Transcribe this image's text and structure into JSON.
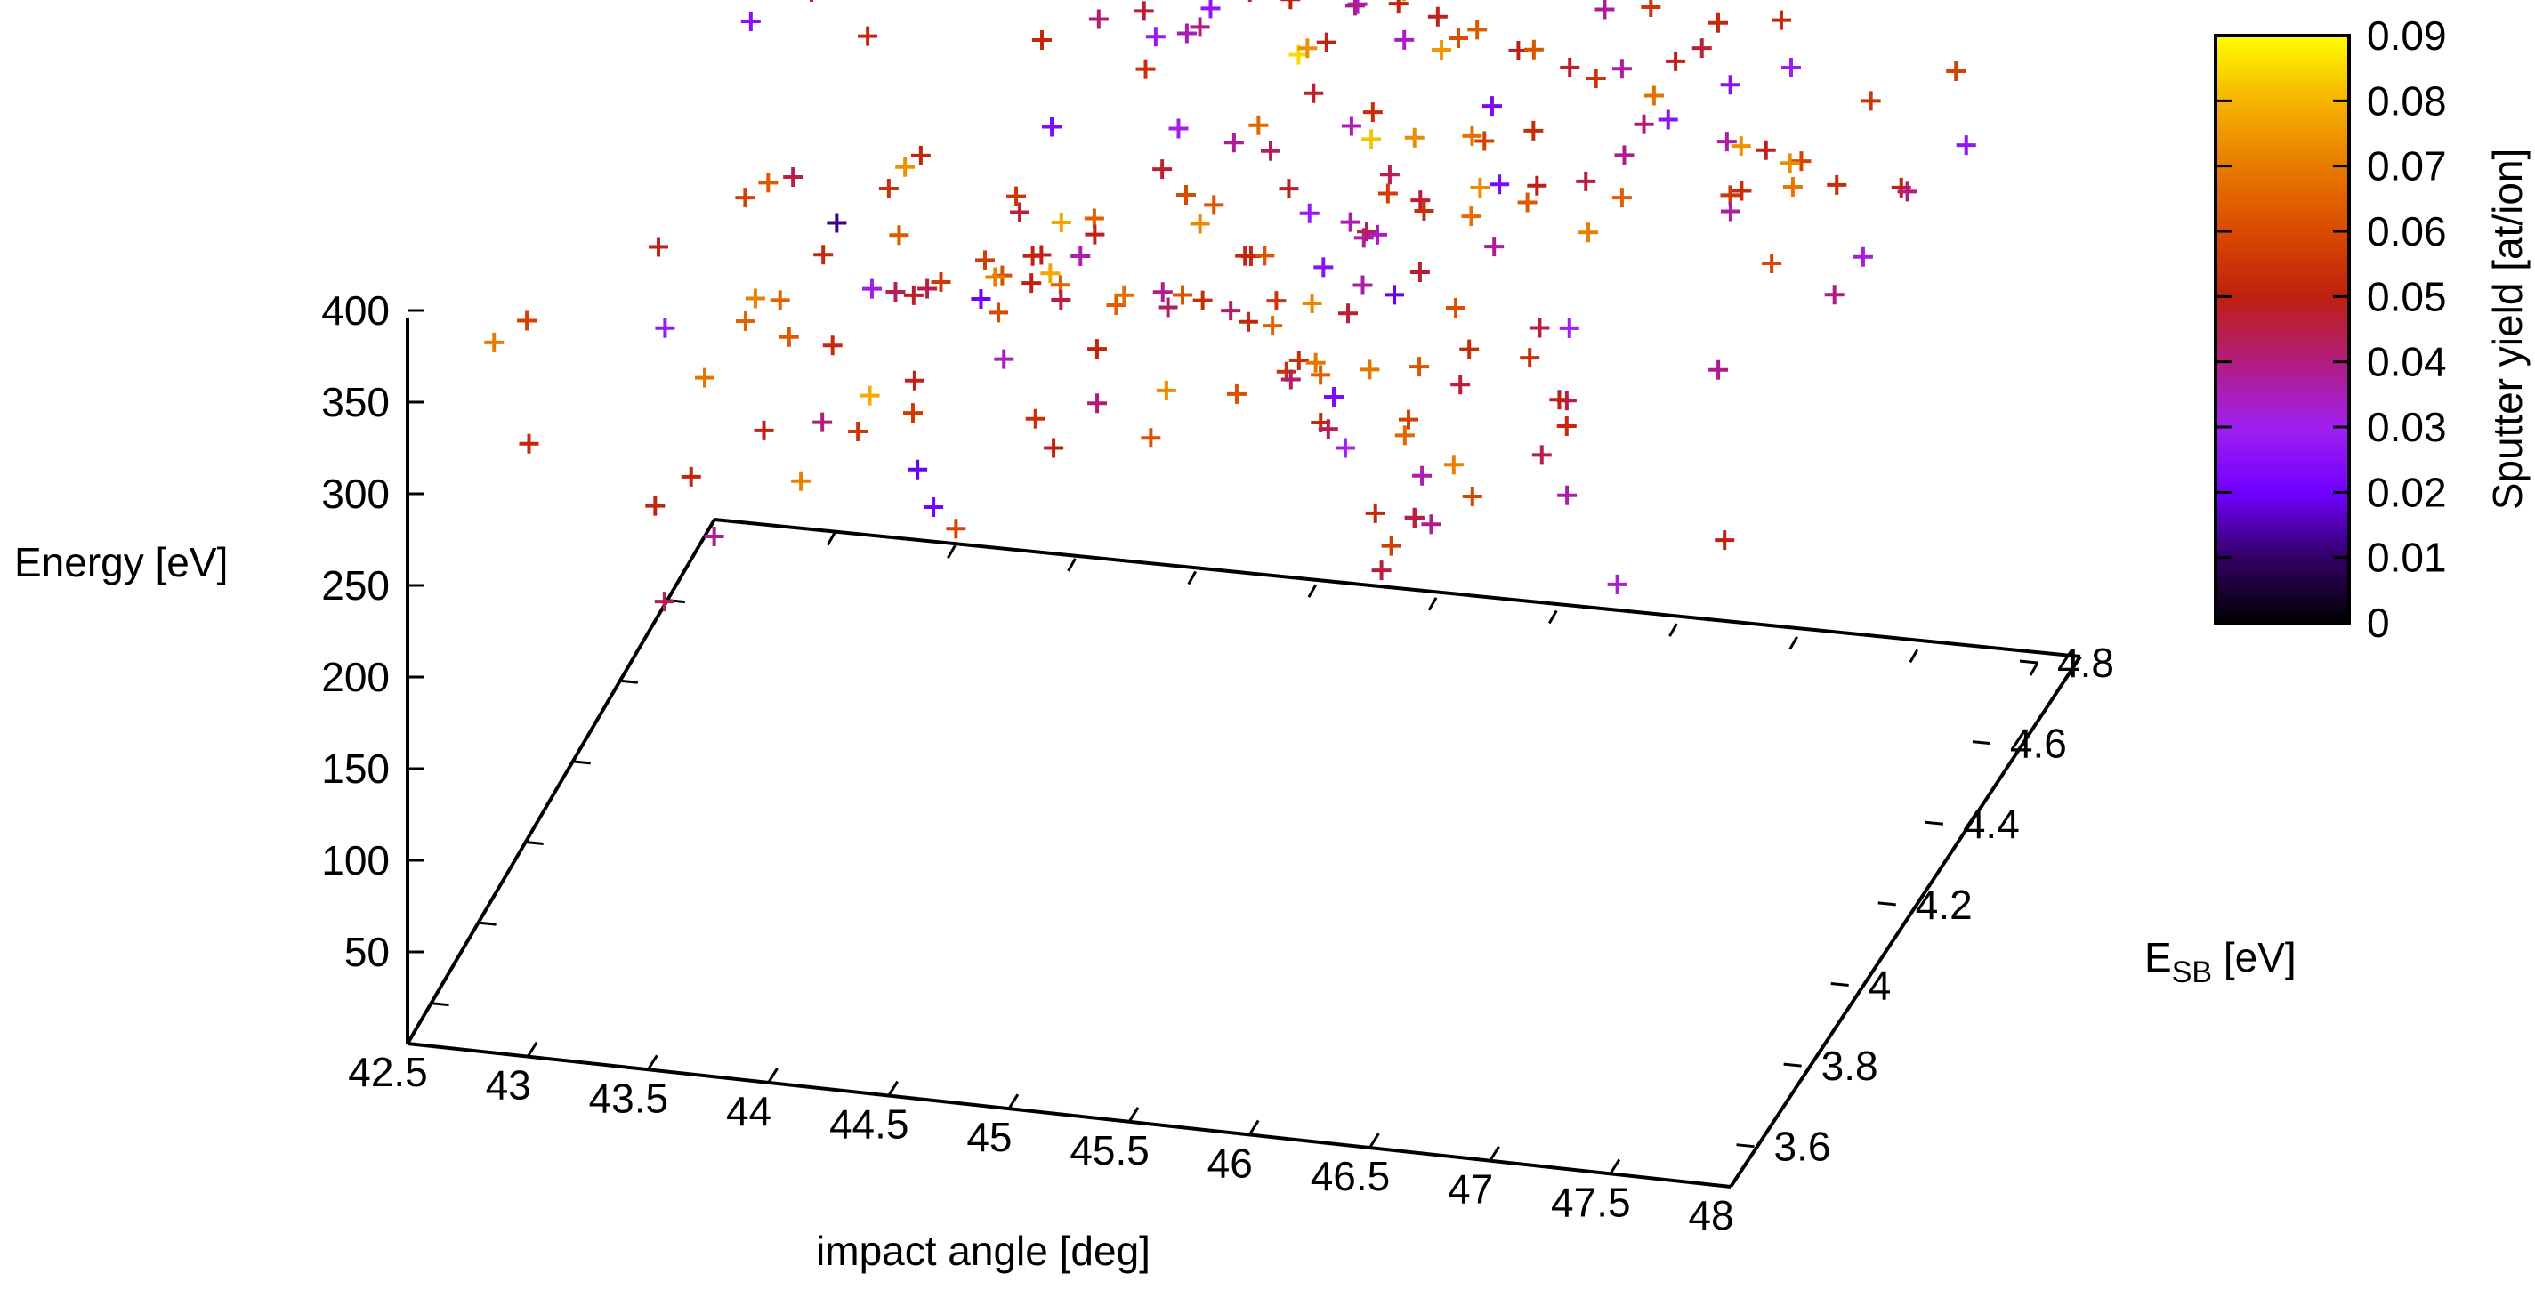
{
  "chart_data": {
    "type": "scatter",
    "title": "",
    "x_axis": {
      "label": "impact angle [deg]",
      "range": [
        42.5,
        48
      ],
      "ticks": [
        "42.5",
        "43",
        "43.5",
        "44",
        "44.5",
        "45",
        "45.5",
        "46",
        "46.5",
        "47",
        "47.5",
        "48"
      ]
    },
    "y_axis": {
      "label_main": "E",
      "label_sub": "SB",
      "label_rest": " [eV]",
      "range": [
        3.5,
        4.8
      ],
      "ticks": [
        "3.6",
        "3.8",
        "4",
        "4.2",
        "4.4",
        "4.6",
        "4.8"
      ]
    },
    "z_axis": {
      "label": "Energy [eV]",
      "range": [
        0,
        400
      ],
      "ticks": [
        "50",
        "100",
        "150",
        "200",
        "250",
        "300",
        "350",
        "400"
      ]
    },
    "colorbar": {
      "label": "Sputter yield [at/ion]",
      "range": [
        0,
        0.09
      ],
      "ticks": [
        "0",
        "0.01",
        "0.02",
        "0.03",
        "0.04",
        "0.05",
        "0.06",
        "0.07",
        "0.08",
        "0.09"
      ],
      "palette": [
        "#000000",
        "#330066",
        "#7000ff",
        "#a020f0",
        "#b21c80",
        "#c0200f",
        "#d94a00",
        "#e87b00",
        "#f5b300",
        "#ffff00"
      ]
    },
    "grid": false,
    "point_marker": "plus",
    "points": [
      [
        47.46,
        4.2,
        404,
        0.049
      ],
      [
        47.25,
        3.57,
        389,
        0.052
      ],
      [
        46.85,
        4.55,
        374,
        0.047
      ],
      [
        47.29,
        4.27,
        364,
        0.053
      ],
      [
        45.22,
        3.73,
        391,
        0.064
      ],
      [
        43.88,
        3.71,
        359,
        0.063
      ],
      [
        46.16,
        3.87,
        260,
        0.052
      ],
      [
        46.26,
        4.7,
        396,
        0.038
      ],
      [
        43.06,
        4.02,
        284,
        0.028
      ],
      [
        46.78,
        4.06,
        328,
        0.03
      ],
      [
        46.19,
        4.03,
        396,
        0.047
      ],
      [
        45.18,
        3.99,
        332,
        0.043
      ],
      [
        46.38,
        4.7,
        276,
        0.039
      ],
      [
        46.11,
        4.11,
        338,
        0.047
      ],
      [
        44.89,
        4.48,
        276,
        0.062
      ],
      [
        46.55,
        3.67,
        330,
        0.036
      ],
      [
        46.18,
        4.19,
        302,
        0.061
      ],
      [
        44.8,
        4.67,
        384,
        0.049
      ],
      [
        45.17,
        3.7,
        373,
        0.051
      ],
      [
        45.36,
        4.19,
        390,
        0.066
      ],
      [
        44.5,
        4.11,
        324,
        0.051
      ],
      [
        42.71,
        4.74,
        288,
        0.025
      ],
      [
        45.92,
        4.72,
        322,
        0.049
      ],
      [
        45.82,
        3.84,
        339,
        0.054
      ],
      [
        44.5,
        4.04,
        372,
        0.055
      ],
      [
        43.54,
        3.87,
        395,
        0.058
      ],
      [
        46.18,
        3.99,
        285,
        0.058
      ],
      [
        47.69,
        4.41,
        388,
        0.055
      ],
      [
        47.36,
        4.15,
        389,
        0.056
      ],
      [
        47.17,
        4.33,
        376,
        0.037
      ],
      [
        45.86,
        4.06,
        323,
        0.047
      ],
      [
        46.07,
        3.73,
        339,
        0.052
      ],
      [
        44.61,
        3.51,
        341,
        0.019
      ],
      [
        44.17,
        4.6,
        398,
        0.041
      ],
      [
        45.07,
        4.08,
        319,
        0.039
      ],
      [
        44.77,
        3.51,
        311,
        0.059
      ],
      [
        43.68,
        3.93,
        395,
        0.045
      ],
      [
        46.78,
        4.69,
        356,
        0.052
      ],
      [
        44.92,
        4.57,
        388,
        0.06
      ],
      [
        45.62,
        4.2,
        314,
        0.025
      ],
      [
        45.01,
        4.76,
        366,
        0.024
      ],
      [
        47.67,
        4.01,
        387,
        0.059
      ],
      [
        45.68,
        4.42,
        317,
        0.044
      ],
      [
        45.27,
        4.25,
        304,
        0.052
      ],
      [
        47.18,
        4.55,
        394,
        0.052
      ],
      [
        45.85,
        4.45,
        399,
        0.049
      ],
      [
        43.62,
        4.74,
        374,
        0.049
      ],
      [
        44.75,
        3.85,
        370,
        0.05
      ],
      [
        44.88,
        4.11,
        308,
        0.067
      ],
      [
        43.5,
        3.53,
        301,
        0.051
      ],
      [
        44.11,
        4.0,
        257,
        0.056
      ],
      [
        46.5,
        3.76,
        283,
        0.039
      ],
      [
        46.54,
        3.65,
        311,
        0.054
      ],
      [
        44.33,
        4.32,
        276,
        0.049
      ],
      [
        43.62,
        3.56,
        312,
        0.051
      ],
      [
        45.58,
        4.45,
        343,
        0.053
      ],
      [
        47.34,
        4.12,
        300,
        0.039
      ],
      [
        44.67,
        4.69,
        334,
        0.027
      ],
      [
        46.89,
        3.78,
        375,
        0.054
      ],
      [
        46.23,
        4.77,
        338,
        0.038
      ],
      [
        45.26,
        4.58,
        348,
        0.049
      ],
      [
        45.65,
        4.47,
        240,
        0.019
      ],
      [
        45.95,
        4.27,
        249,
        0.062
      ],
      [
        43.49,
        4.44,
        357,
        0.052
      ],
      [
        46.51,
        4.68,
        363,
        0.055
      ],
      [
        46.3,
        3.6,
        357,
        0.03
      ],
      [
        45.54,
        4.24,
        399,
        0.047
      ],
      [
        43.45,
        4.11,
        285,
        0.065
      ],
      [
        44.95,
        3.74,
        307,
        0.05
      ],
      [
        47.26,
        4.51,
        378,
        0.029
      ],
      [
        45.19,
        3.68,
        348,
        0.041
      ],
      [
        45.5,
        3.93,
        348,
        0.042
      ],
      [
        45.2,
        4.31,
        254,
        0.052
      ],
      [
        45.96,
        4.28,
        332,
        0.053
      ],
      [
        46.7,
        4.5,
        357,
        0.068
      ],
      [
        44.01,
        4.69,
        260,
        0.023
      ],
      [
        43.46,
        4.56,
        247,
        0.054
      ],
      [
        46.73,
        4.1,
        279,
        0.045
      ],
      [
        47.6,
        4.63,
        291,
        0.05
      ],
      [
        43.95,
        3.93,
        260,
        0.055
      ],
      [
        43.49,
        3.79,
        227,
        0.039
      ],
      [
        46.32,
        4.21,
        333,
        0.038
      ],
      [
        45.87,
        3.73,
        389,
        0.065
      ],
      [
        43.91,
        4.7,
        395,
        0.047
      ],
      [
        44.48,
        4.41,
        387,
        0.041
      ],
      [
        43.92,
        4.6,
        389,
        0.022
      ],
      [
        46.23,
        4.47,
        382,
        0.062
      ],
      [
        44.93,
        3.55,
        397,
        0.034
      ],
      [
        47.69,
        4.77,
        325,
        0.058
      ],
      [
        45.94,
        4.75,
        358,
        0.031
      ],
      [
        44.95,
        4.2,
        358,
        0.047
      ],
      [
        46.68,
        3.7,
        375,
        0.046
      ],
      [
        44.58,
        4.5,
        373,
        0.046
      ],
      [
        44.9,
        4.71,
        255,
        0.043
      ],
      [
        47.87,
        4.63,
        318,
        0.027
      ],
      [
        44.55,
        4.58,
        341,
        0.028
      ],
      [
        47.53,
        4.54,
        272,
        0.032
      ],
      [
        46.39,
        4.32,
        343,
        0.049
      ],
      [
        46.19,
        3.64,
        357,
        0.044
      ],
      [
        45.79,
        3.66,
        366,
        0.061
      ],
      [
        44.55,
        4.32,
        299,
        0.064
      ],
      [
        44.6,
        4.77,
        346,
        0.056
      ],
      [
        44.5,
        3.61,
        366,
        0.049
      ],
      [
        44.49,
        3.7,
        277,
        0.021
      ],
      [
        44.66,
        4.6,
        340,
        0.035
      ],
      [
        43.11,
        4.49,
        396,
        0.051
      ],
      [
        47.91,
        4.34,
        357,
        0.04
      ],
      [
        45.72,
        4.67,
        337,
        0.061
      ],
      [
        46.68,
        4.58,
        326,
        0.026
      ],
      [
        44.62,
        4.19,
        308,
        0.036
      ],
      [
        43.59,
        4.15,
        303,
        0.052
      ],
      [
        45.75,
        4.76,
        384,
        0.025
      ],
      [
        45.7,
        3.87,
        394,
        0.062
      ],
      [
        43.67,
        3.74,
        358,
        0.065
      ],
      [
        45.66,
        3.96,
        349,
        0.055
      ],
      [
        43.33,
        4.52,
        375,
        0.066
      ],
      [
        46.55,
        3.87,
        355,
        0.053
      ],
      [
        45.86,
        4.67,
        302,
        0.022
      ],
      [
        45.58,
        3.51,
        372,
        0.061
      ],
      [
        47.47,
        3.56,
        308,
        0.032
      ],
      [
        46.09,
        4.68,
        392,
        0.041
      ],
      [
        46.37,
        4.3,
        338,
        0.063
      ],
      [
        45.96,
        3.75,
        367,
        0.053
      ],
      [
        45.31,
        4.66,
        352,
        0.032
      ],
      [
        44.42,
        4.65,
        378,
        0.051
      ],
      [
        45.57,
        4.37,
        353,
        0.035
      ],
      [
        45.51,
        3.98,
        367,
        0.051
      ],
      [
        43.92,
        4.12,
        294,
        0.044
      ],
      [
        46.55,
        4.61,
        315,
        0.041
      ],
      [
        43.18,
        3.87,
        363,
        0.049
      ],
      [
        44.91,
        3.81,
        380,
        0.065
      ],
      [
        44.81,
        4.69,
        383,
        0.049
      ],
      [
        44.28,
        3.83,
        361,
        0.048
      ],
      [
        44.76,
        3.7,
        387,
        0.06
      ],
      [
        45.75,
        3.93,
        314,
        0.042
      ],
      [
        47.43,
        4.53,
        312,
        0.053
      ],
      [
        46.12,
        4.58,
        312,
        0.053
      ],
      [
        45.69,
        4.07,
        373,
        0.028
      ],
      [
        42.73,
        3.78,
        269,
        0.052
      ],
      [
        45.01,
        4.24,
        336,
        0.06
      ],
      [
        46.86,
        4.66,
        330,
        0.025
      ],
      [
        46.74,
        3.69,
        317,
        0.059
      ],
      [
        43.47,
        3.6,
        233,
        0.044
      ],
      [
        46.42,
        3.73,
        337,
        0.066
      ],
      [
        45.13,
        4.56,
        374,
        0.05
      ],
      [
        43.42,
        4.09,
        353,
        0.063
      ],
      [
        46.25,
        4.24,
        383,
        0.058
      ],
      [
        44.24,
        4.32,
        298,
        0.047
      ],
      [
        47.45,
        4.5,
        259,
        0.04
      ],
      [
        43.93,
        4.01,
        320,
        0.031
      ],
      [
        44.19,
        3.86,
        386,
        0.063
      ],
      [
        45.33,
        4.63,
        358,
        0.04
      ],
      [
        45.69,
        4.3,
        309,
        0.037
      ],
      [
        46.42,
        4.78,
        361,
        0.062
      ],
      [
        43.92,
        3.81,
        291,
        0.041
      ],
      [
        43.55,
        4.58,
        357,
        0.055
      ],
      [
        46.78,
        4.05,
        239,
        0.036
      ],
      [
        43.53,
        3.96,
        248,
        0.049
      ],
      [
        45.52,
        4.62,
        364,
        0.051
      ],
      [
        47.7,
        3.78,
        287,
        0.05
      ],
      [
        46.4,
        4.56,
        349,
        0.055
      ],
      [
        46.44,
        3.75,
        288,
        0.045
      ],
      [
        43.92,
        4.73,
        378,
        0.062
      ],
      [
        43.77,
        4.38,
        309,
        0.051
      ],
      [
        46.57,
        3.52,
        325,
        0.057
      ],
      [
        46.4,
        4.67,
        330,
        0.037
      ],
      [
        44.56,
        3.92,
        356,
        0.061
      ],
      [
        45.8,
        4.29,
        337,
        0.057
      ],
      [
        45.96,
        4.74,
        365,
        0.026
      ],
      [
        45.17,
        4.28,
        358,
        0.038
      ],
      [
        46.08,
        3.96,
        391,
        0.034
      ],
      [
        45.03,
        4.49,
        392,
        0.041
      ],
      [
        45.97,
        4.01,
        351,
        0.037
      ],
      [
        46.64,
        4.16,
        265,
        0.049
      ],
      [
        46.34,
        4.51,
        365,
        0.047
      ],
      [
        45.84,
        4.02,
        286,
        0.023
      ],
      [
        46.7,
        4.74,
        385,
        0.053
      ],
      [
        44.59,
        4.03,
        254,
        0.054
      ],
      [
        45.96,
        4.48,
        285,
        0.067
      ],
      [
        46.92,
        4.6,
        275,
        0.037
      ],
      [
        44.94,
        4.37,
        398,
        0.04
      ],
      [
        46.93,
        4.13,
        386,
        0.064
      ],
      [
        45.8,
        4.2,
        336,
        0.044
      ],
      [
        46.04,
        3.76,
        358,
        0.064
      ],
      [
        44.66,
        4.21,
        316,
        0.049
      ],
      [
        44.01,
        4.39,
        232,
        0.02
      ],
      [
        45.56,
        3.75,
        394,
        0.053
      ],
      [
        43.92,
        4.74,
        295,
        0.052
      ],
      [
        44.39,
        4.02,
        340,
        0.057
      ],
      [
        46.95,
        3.77,
        325,
        0.045
      ],
      [
        42.78,
        3.72,
        350,
        0.058
      ],
      [
        46.47,
        3.58,
        297,
        0.046
      ],
      [
        45.69,
        4.78,
        317,
        0.063
      ],
      [
        47.43,
        4.38,
        358,
        0.059
      ],
      [
        45.28,
        3.95,
        349,
        0.062
      ],
      [
        46.76,
        4.53,
        370,
        0.049
      ],
      [
        46.47,
        4.25,
        282,
        0.046
      ],
      [
        46.14,
        4.3,
        371,
        0.068
      ],
      [
        44.05,
        4.18,
        288,
        0.056
      ],
      [
        44.9,
        4.32,
        353,
        0.031
      ],
      [
        45.76,
        4.4,
        396,
        0.034
      ],
      [
        44.15,
        4.02,
        321,
        0.045
      ],
      [
        43.44,
        4.36,
        272,
        0.012
      ],
      [
        46.45,
        4.1,
        393,
        0.023
      ],
      [
        44.48,
        4.25,
        269,
        0.046
      ],
      [
        43.57,
        4.21,
        240,
        0.052
      ],
      [
        45.62,
        4.7,
        389,
        0.049
      ],
      [
        44.68,
        4.72,
        393,
        0.058
      ],
      [
        45.28,
        4.4,
        308,
        0.048
      ],
      [
        46.76,
        4.15,
        388,
        0.045
      ],
      [
        45.32,
        4.62,
        242,
        0.036
      ],
      [
        43.06,
        4.64,
        331,
        0.05
      ],
      [
        44.4,
        4.69,
        297,
        0.054
      ],
      [
        45.77,
        4.25,
        375,
        0.082
      ],
      [
        45.36,
        4.36,
        391,
        0.085
      ],
      [
        43.99,
        3.94,
        278,
        0.079
      ],
      [
        45.94,
        4.26,
        376,
        0.073
      ],
      [
        45.22,
        4.54,
        353,
        0.074
      ],
      [
        44.54,
        3.91,
        357,
        0.071
      ],
      [
        43.94,
        4.14,
        358,
        0.074
      ],
      [
        45.73,
        4.04,
        331,
        0.072
      ],
      [
        45.36,
        3.8,
        331,
        0.073
      ],
      [
        43.87,
        3.77,
        267,
        0.071
      ],
      [
        46.34,
        4.13,
        383,
        0.073
      ],
      [
        44.95,
        4.36,
        293,
        0.072
      ],
      [
        44.73,
        3.95,
        353,
        0.078
      ],
      [
        45.96,
        4.05,
        296,
        0.069
      ],
      [
        47.12,
        4.66,
        278,
        0.069
      ],
      [
        43.48,
        3.76,
        320,
        0.069
      ],
      [
        42.84,
        3.52,
        383,
        0.07
      ],
      [
        46.01,
        3.77,
        362,
        0.069
      ],
      [
        46.79,
        4.13,
        365,
        0.071
      ],
      [
        44.38,
        4.51,
        389,
        0.073
      ],
      [
        45.63,
        4.69,
        325,
        0.075
      ],
      [
        47.16,
        4.4,
        358,
        0.074
      ],
      [
        45.66,
        4.5,
        399,
        0.074
      ],
      [
        44.56,
        4.17,
        330,
        0.078
      ],
      [
        47.0,
        4.77,
        265,
        0.073
      ],
      [
        43.19,
        4.27,
        247,
        0.071
      ],
      [
        46.8,
        3.55,
        366,
        0.071
      ]
    ]
  }
}
